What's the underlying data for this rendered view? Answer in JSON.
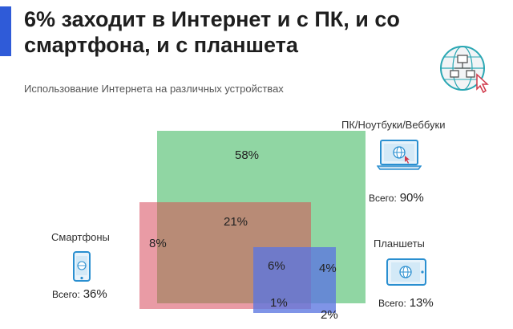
{
  "header": {
    "title": "6% заходит в Интернет и с ПК, и со смартфона, и с планшета",
    "subtitle": "Использование Интернета на различных устройствах"
  },
  "icons": {
    "logo": "globe-network-cursor-icon",
    "pc": "laptop-globe-icon",
    "smartphone": "smartphone-globe-icon",
    "tablet": "tablet-globe-icon"
  },
  "colors": {
    "accent": "#2f5bd8",
    "pc": "#7ccf93",
    "smartphone": "#e58a95",
    "tablet": "#5b76e0",
    "pc_and_phone": "#b68a74"
  },
  "devices": {
    "pc": {
      "label": "ПК/Ноутбуки/Веббуки",
      "total_label": "Всего:",
      "total_value": "90%"
    },
    "smartphone": {
      "label": "Смартфоны",
      "total_label": "Всего:",
      "total_value": "36%"
    },
    "tablet": {
      "label": "Планшеты",
      "total_label": "Всего:",
      "total_value": "13%"
    }
  },
  "chart_data": {
    "type": "venn",
    "title": "Использование Интернета на различных устройствах",
    "sets": [
      {
        "name": "ПК/Ноутбуки/Веббуки",
        "total": 90
      },
      {
        "name": "Смартфоны",
        "total": 36
      },
      {
        "name": "Планшеты",
        "total": 13
      }
    ],
    "regions": [
      {
        "sets": [
          "ПК/Ноутбуки/Веббуки"
        ],
        "value": 58,
        "label": "58%"
      },
      {
        "sets": [
          "ПК/Ноутбуки/Веббуки",
          "Смартфоны"
        ],
        "value": 21,
        "label": "21%"
      },
      {
        "sets": [
          "Смартфоны"
        ],
        "value": 8,
        "label": "8%"
      },
      {
        "sets": [
          "ПК/Ноутбуки/Веббуки",
          "Смартфоны",
          "Планшеты"
        ],
        "value": 6,
        "label": "6%"
      },
      {
        "sets": [
          "ПК/Ноутбуки/Веббуки",
          "Планшеты"
        ],
        "value": 4,
        "label": "4%"
      },
      {
        "sets": [
          "Смартфоны",
          "Планшеты"
        ],
        "value": 1,
        "label": "1%"
      },
      {
        "sets": [
          "Планшеты"
        ],
        "value": 2,
        "label": "2%"
      }
    ]
  }
}
